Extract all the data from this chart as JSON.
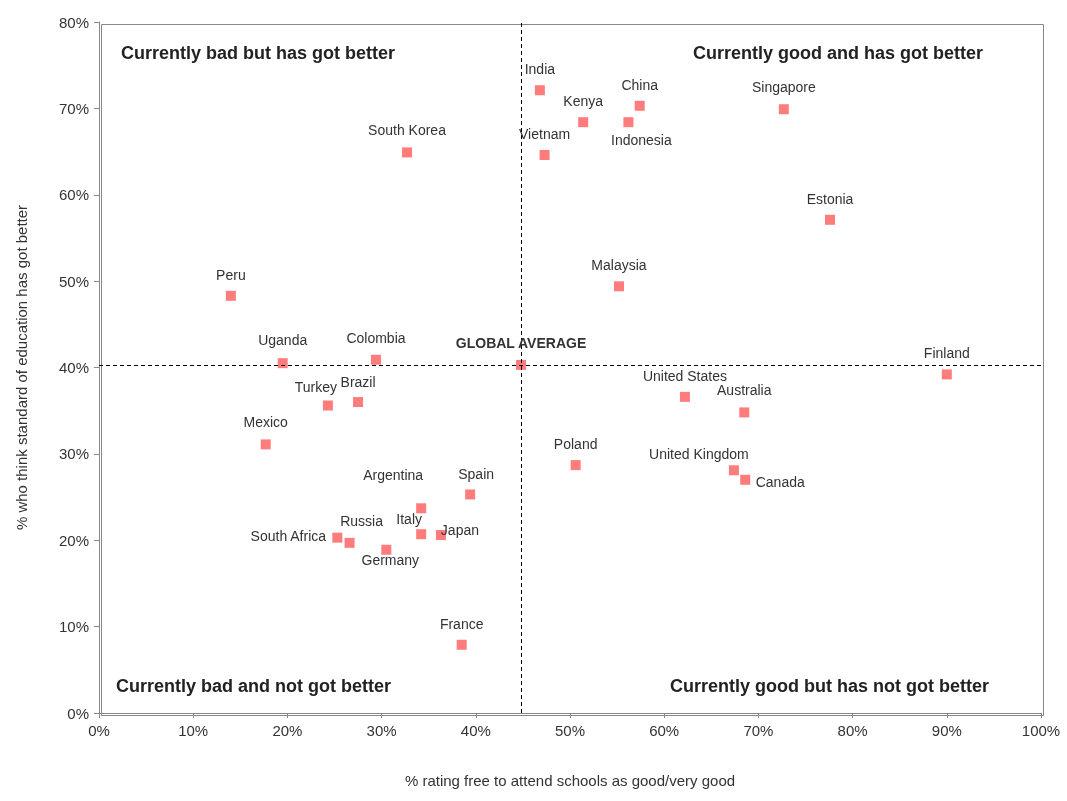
{
  "chart_data": {
    "type": "scatter",
    "xlabel": "% rating free to attend schools as good/very good",
    "ylabel": "% who think standard of education has got better",
    "xlim": [
      0,
      100
    ],
    "xticks": [
      {
        "value": 0,
        "label": "0%"
      },
      {
        "value": 10,
        "label": "10%"
      },
      {
        "value": 20,
        "label": "20%"
      },
      {
        "value": 30,
        "label": "30%"
      },
      {
        "value": 40,
        "label": "40%"
      },
      {
        "value": 50,
        "label": "50%"
      },
      {
        "value": 60,
        "label": "60%"
      },
      {
        "value": 70,
        "label": "70%"
      },
      {
        "value": 80,
        "label": "80%"
      },
      {
        "value": 90,
        "label": "90%"
      },
      {
        "value": 100,
        "label": "100%"
      }
    ],
    "ylim": [
      0,
      80
    ],
    "yticks": [
      {
        "value": 0,
        "label": "0%"
      },
      {
        "value": 10,
        "label": "10%"
      },
      {
        "value": 20,
        "label": "20%"
      },
      {
        "value": 30,
        "label": "30%"
      },
      {
        "value": 40,
        "label": "40%"
      },
      {
        "value": 50,
        "label": "50%"
      },
      {
        "value": 60,
        "label": "60%"
      },
      {
        "value": 70,
        "label": "70%"
      },
      {
        "value": 80,
        "label": "80%"
      }
    ],
    "grid": false,
    "marker": "square",
    "series": [
      {
        "color": "#ff5b5b",
        "x": [
          46.8,
          51.4,
          57.4,
          72.7,
          56.2,
          47.3,
          32.7,
          77.6,
          55.2,
          14.0,
          19.5,
          29.4,
          44.8,
          90.0,
          24.3,
          27.5,
          62.2,
          68.5,
          17.7,
          50.6,
          67.4,
          68.6,
          39.4,
          34.2,
          34.2,
          36.3,
          25.3,
          26.6,
          30.5,
          38.5
        ],
        "values": [
          72.1,
          68.4,
          70.3,
          69.9,
          68.4,
          64.6,
          64.9,
          57.1,
          49.4,
          48.3,
          40.5,
          40.9,
          40.3,
          39.2,
          35.6,
          36.0,
          36.6,
          34.8,
          31.1,
          28.7,
          28.1,
          27.0,
          25.3,
          23.7,
          20.7,
          20.6,
          20.3,
          19.7,
          18.9,
          7.9
        ]
      }
    ],
    "ref_lines": [
      {
        "axis": "x",
        "value": 44.8,
        "color": "#000000",
        "line_style": "dashed"
      },
      {
        "axis": "y",
        "value": 40.3,
        "color": "#000000",
        "line_style": "dashed"
      }
    ],
    "annotations": [
      {
        "text": "India",
        "x": 46.8,
        "y": 72.1
      },
      {
        "text": "Kenya",
        "x": 51.4,
        "y": 68.4
      },
      {
        "text": "China",
        "x": 57.4,
        "y": 70.3
      },
      {
        "text": "Singapore",
        "x": 72.7,
        "y": 69.9
      },
      {
        "text": "Indonesia",
        "x": 56.2,
        "y": 68.4
      },
      {
        "text": "Vietnam",
        "x": 47.3,
        "y": 64.6
      },
      {
        "text": "South Korea",
        "x": 32.7,
        "y": 64.9
      },
      {
        "text": "Estonia",
        "x": 77.6,
        "y": 57.1
      },
      {
        "text": "Malaysia",
        "x": 55.2,
        "y": 49.4
      },
      {
        "text": "Peru",
        "x": 14.0,
        "y": 48.3
      },
      {
        "text": "Uganda",
        "x": 19.5,
        "y": 40.5
      },
      {
        "text": "Colombia",
        "x": 29.4,
        "y": 40.9
      },
      {
        "text": "GLOBAL AVERAGE",
        "x": 44.8,
        "y": 40.3
      },
      {
        "text": "Finland",
        "x": 90.0,
        "y": 39.2
      },
      {
        "text": "Turkey",
        "x": 24.3,
        "y": 35.6
      },
      {
        "text": "Brazil",
        "x": 27.5,
        "y": 36.0
      },
      {
        "text": "United States",
        "x": 62.2,
        "y": 36.6
      },
      {
        "text": "Australia",
        "x": 68.5,
        "y": 34.8
      },
      {
        "text": "Mexico",
        "x": 17.7,
        "y": 31.1
      },
      {
        "text": "Poland",
        "x": 50.6,
        "y": 28.7
      },
      {
        "text": "United Kingdom",
        "x": 67.4,
        "y": 28.1
      },
      {
        "text": "Canada",
        "x": 68.6,
        "y": 27.0
      },
      {
        "text": "Spain",
        "x": 39.4,
        "y": 25.3
      },
      {
        "text": "Argentina",
        "x": 34.2,
        "y": 23.7
      },
      {
        "text": "Italy",
        "x": 34.2,
        "y": 20.7
      },
      {
        "text": "Japan",
        "x": 36.3,
        "y": 20.6
      },
      {
        "text": "South Africa",
        "x": 25.3,
        "y": 20.3
      },
      {
        "text": "Russia",
        "x": 26.6,
        "y": 19.7
      },
      {
        "text": "Germany",
        "x": 30.5,
        "y": 18.9
      },
      {
        "text": "France",
        "x": 38.5,
        "y": 7.9
      },
      "Currently bad but has got better",
      "Currently good and has got better",
      "Currently bad and not got better",
      "Currently good but has not got better"
    ]
  }
}
